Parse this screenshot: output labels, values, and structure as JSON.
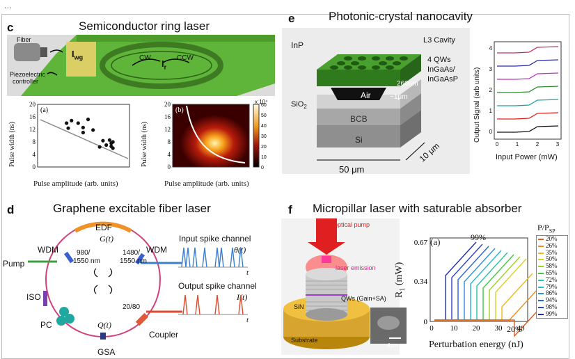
{
  "header_fragment": "...",
  "panel_c": {
    "letter": "c",
    "title": "Semiconductor ring laser",
    "fiber_label": "Fiber",
    "piezo_label_1": "Piezoelectric",
    "piezo_label_2": "controller",
    "iwg": "I",
    "iwg_sub": "wg",
    "ir": "I",
    "ir_sub": "r",
    "cw": "CW",
    "ccw": "CCW",
    "plot_a": {
      "tag": "(a)",
      "ylabel": "Pulse width (ns)",
      "xlabel": "Pulse amplitude (arb. units)",
      "yticks": [
        "0",
        "4",
        "8",
        "12",
        "16",
        "20"
      ]
    },
    "plot_b": {
      "tag": "(b)",
      "ylabel": "Pulse width (ns)",
      "xlabel": "Pulse amplitude (arb. units)",
      "yticks": [
        "0",
        "4",
        "8",
        "12",
        "16",
        "20"
      ],
      "colorbar_ticks": [
        "0",
        "10",
        "20",
        "30",
        "40",
        "50",
        "60"
      ],
      "colorbar_exp": "x 10⁴"
    }
  },
  "panel_e": {
    "letter": "e",
    "title": "Photonic-crystal nanocavity",
    "inp": "InP",
    "l3": "L3 Cavity",
    "qw1": "4 QWs",
    "qw2": "InGaAs/",
    "qw3": "InGaAsP",
    "t260": "260nm",
    "air": "Air",
    "gap": "~1μm",
    "sio2": "SiO",
    "sio2_sub": "2",
    "bcb": "BCB",
    "si": "Si",
    "dim50": "50 μm",
    "dim10": "10 μm",
    "ylabel": "Output Signal (arb units)",
    "xlabel": "Input Power (mW)",
    "xticks": [
      "0",
      "1",
      "2",
      "3"
    ],
    "yticks": [
      "0",
      "1",
      "2",
      "3",
      "4"
    ]
  },
  "panel_d": {
    "letter": "d",
    "title": "Graphene excitable fiber laser",
    "edf": "EDF",
    "gt": "G(t)",
    "wdm_left": "WDM",
    "wdm_right": "WDM",
    "pump": "Pump",
    "w980_1": "980/",
    "w980_2": "1550 nm",
    "w1480_1": "1480/",
    "w1480_2": "1550 nm",
    "iso": "ISO",
    "pc": "PC",
    "qt": "Q(t)",
    "gsa": "GSA",
    "ratio": "20/80",
    "coupler": "Coupler",
    "input_title": "Input spike channel",
    "input_sym": "θ(t)",
    "output_title": "Output spike channel",
    "output_sym": "I(t)",
    "t_axis": "t"
  },
  "panel_f": {
    "letter": "f",
    "title": "Micropillar laser with saturable absorber",
    "optical_pump": "optical pump",
    "laser_emission": "laser emission",
    "qws": "QWs (Gain+SA)",
    "sin": "SiN",
    "substrate": "Substrate",
    "scale": "4μm",
    "tag": "(a)",
    "ylabel": "R",
    "ylabel_sub": "1",
    "ylabel_unit": " (mW)",
    "xlabel": "Perturbation energy (nJ)",
    "yticks": [
      "0.67",
      "0.34",
      "0"
    ],
    "xticks": [
      "0",
      "10",
      "20",
      "30",
      "40"
    ],
    "ann_top": "99%",
    "ann_bottom": "20%",
    "legend_title": "P/P",
    "legend_title_sub": "SP",
    "legend": [
      "20%",
      "26%",
      "35%",
      "50%",
      "58%",
      "65%",
      "72%",
      "79%",
      "86%",
      "94%",
      "98%",
      "99%"
    ],
    "legend_colors": [
      "#e05a1a",
      "#f08a1e",
      "#f2b818",
      "#d8d21a",
      "#9bd41c",
      "#3fc83a",
      "#25c3a0",
      "#21b6d6",
      "#2a8fe0",
      "#2a5fd8",
      "#2f3fd0",
      "#1f2ab8"
    ]
  },
  "colors": {
    "green_board": "#5fb53a",
    "ring": "#3d7a22",
    "pc_green": "#7cc043",
    "edf": "#f0922a",
    "wdm_blue": "#3b5fd0",
    "ring_fiber": "#d0407a",
    "pulse_blue": "#3b7fd0",
    "pulse_red": "#e04a2a"
  }
}
